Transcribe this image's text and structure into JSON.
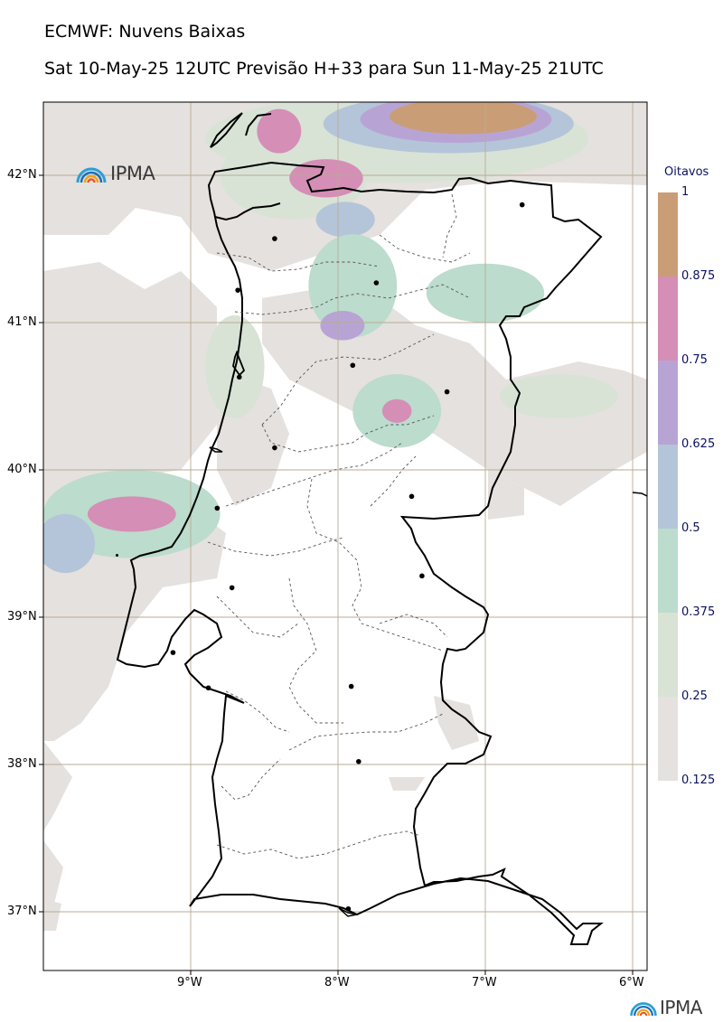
{
  "title": "ECMWF: Nuvens Baixas",
  "subtitle": "Sat 10-May-25 12UTC Previsão H+33 para Sun 11-May-25 21UTC",
  "logo_text": "IPMA",
  "chart_data": {
    "type": "heatmap",
    "title": "ECMWF: Nuvens Baixas",
    "subtitle": "Sat 10-May-25 12UTC Previsão H+33 para Sun 11-May-25 21UTC",
    "xlabel": "",
    "ylabel": "",
    "lon_range": [
      -10.0,
      -5.9
    ],
    "lat_range": [
      36.6,
      42.5
    ],
    "x_ticks": [
      {
        "value": -9,
        "label": "9°W"
      },
      {
        "value": -8,
        "label": "8°W"
      },
      {
        "value": -7,
        "label": "7°W"
      },
      {
        "value": -6,
        "label": "6°W"
      }
    ],
    "y_ticks": [
      {
        "value": 42,
        "label": "42°N"
      },
      {
        "value": 41,
        "label": "41°N"
      },
      {
        "value": 40,
        "label": "40°N"
      },
      {
        "value": 39,
        "label": "39°N"
      },
      {
        "value": 38,
        "label": "38°N"
      },
      {
        "value": 37,
        "label": "37°N"
      }
    ],
    "grid": true,
    "colorbar": {
      "unit_label": "Oitavos",
      "bins": [
        {
          "from": 0.125,
          "to": 0.25,
          "color": "#e5e1de"
        },
        {
          "from": 0.25,
          "to": 0.375,
          "color": "#d8e3d6"
        },
        {
          "from": 0.375,
          "to": 0.5,
          "color": "#bcdccd"
        },
        {
          "from": 0.5,
          "to": 0.625,
          "color": "#b4c5d9"
        },
        {
          "from": 0.625,
          "to": 0.75,
          "color": "#b8a4d4"
        },
        {
          "from": 0.75,
          "to": 0.875,
          "color": "#d58eb6"
        },
        {
          "from": 0.875,
          "to": 1.0,
          "color": "#c99e76"
        }
      ],
      "tick_labels": [
        "0.125",
        "0.25",
        "0.375",
        "0.5",
        "0.625",
        "0.75",
        "0.875",
        "1"
      ]
    },
    "cloud_patches": [
      {
        "lon": -7.6,
        "lat": 42.25,
        "rx": 1.3,
        "ry": 0.3,
        "value": 0.3
      },
      {
        "lon": -7.25,
        "lat": 42.35,
        "rx": 0.85,
        "ry": 0.2,
        "value": 0.55
      },
      {
        "lon": -7.2,
        "lat": 42.38,
        "rx": 0.65,
        "ry": 0.16,
        "value": 0.72
      },
      {
        "lon": -7.15,
        "lat": 42.4,
        "rx": 0.5,
        "ry": 0.12,
        "value": 0.95
      },
      {
        "lon": -8.3,
        "lat": 42.0,
        "rx": 0.5,
        "ry": 0.3,
        "value": 0.35
      },
      {
        "lon": -8.08,
        "lat": 41.98,
        "rx": 0.25,
        "ry": 0.13,
        "value": 0.8
      },
      {
        "lon": -8.4,
        "lat": 42.3,
        "rx": 0.15,
        "ry": 0.15,
        "value": 0.75
      },
      {
        "lon": -7.95,
        "lat": 41.7,
        "rx": 0.2,
        "ry": 0.12,
        "value": 0.6
      },
      {
        "lon": -7.9,
        "lat": 41.25,
        "rx": 0.3,
        "ry": 0.35,
        "value": 0.4
      },
      {
        "lon": -7.97,
        "lat": 40.98,
        "rx": 0.15,
        "ry": 0.1,
        "value": 0.7
      },
      {
        "lon": -7.6,
        "lat": 40.4,
        "rx": 0.3,
        "ry": 0.25,
        "value": 0.4
      },
      {
        "lon": -7.6,
        "lat": 40.4,
        "rx": 0.1,
        "ry": 0.08,
        "value": 0.8
      },
      {
        "lon": -7.0,
        "lat": 41.2,
        "rx": 0.4,
        "ry": 0.2,
        "value": 0.4
      },
      {
        "lon": -6.5,
        "lat": 40.5,
        "rx": 0.4,
        "ry": 0.15,
        "value": 0.35
      },
      {
        "lon": -9.4,
        "lat": 39.7,
        "rx": 0.6,
        "ry": 0.3,
        "value": 0.4
      },
      {
        "lon": -9.4,
        "lat": 39.7,
        "rx": 0.3,
        "ry": 0.12,
        "value": 0.75
      },
      {
        "lon": -9.85,
        "lat": 39.5,
        "rx": 0.2,
        "ry": 0.2,
        "value": 0.55
      },
      {
        "lon": -8.7,
        "lat": 40.7,
        "rx": 0.2,
        "ry": 0.35,
        "value": 0.35
      }
    ],
    "cities": [
      {
        "lon": -6.75,
        "lat": 41.8
      },
      {
        "lon": -8.43,
        "lat": 41.57
      },
      {
        "lon": -8.68,
        "lat": 41.22
      },
      {
        "lon": -7.74,
        "lat": 41.27
      },
      {
        "lon": -7.9,
        "lat": 40.71
      },
      {
        "lon": -8.67,
        "lat": 40.63
      },
      {
        "lon": -7.26,
        "lat": 40.53
      },
      {
        "lon": -8.43,
        "lat": 40.15
      },
      {
        "lon": -8.82,
        "lat": 39.74
      },
      {
        "lon": -7.5,
        "lat": 39.82
      },
      {
        "lon": -8.72,
        "lat": 39.2
      },
      {
        "lon": -7.43,
        "lat": 39.28
      },
      {
        "lon": -9.12,
        "lat": 38.76
      },
      {
        "lon": -7.91,
        "lat": 38.53
      },
      {
        "lon": -8.88,
        "lat": 38.52
      },
      {
        "lon": -7.86,
        "lat": 38.02
      },
      {
        "lon": -7.93,
        "lat": 37.02
      },
      {
        "lon": -9.5,
        "lat": 39.42
      }
    ]
  }
}
